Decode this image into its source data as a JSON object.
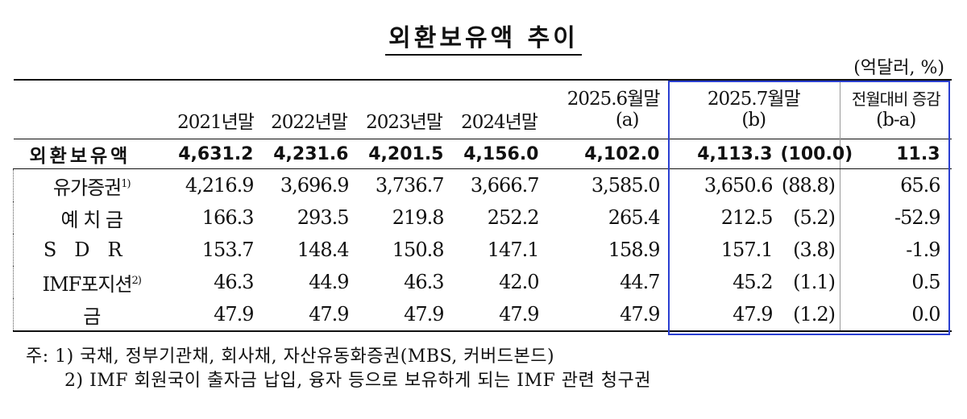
{
  "title": "외환보유액 추이",
  "unit": "(억달러, %)",
  "columns": {
    "c2021": "2021년말",
    "c2022": "2022년말",
    "c2023": "2023년말",
    "c2024": "2024년말",
    "c2025_6_top": "2025.6월말",
    "c2025_6_bot": "(a)",
    "c2025_7_top": "2025.7월말",
    "c2025_7_bot": "(b)",
    "change_top": "전월대비 증감",
    "change_bot": "(b-a)"
  },
  "rows": [
    {
      "label": "외환보유액",
      "sup": "",
      "v2021": "4,631.2",
      "v2022": "4,231.6",
      "v2023": "4,201.5",
      "v2024": "4,156.0",
      "v2025_6": "4,102.0",
      "v2025_7": "4,113.3",
      "share": "(100.0)",
      "change": "11.3"
    },
    {
      "label": "유가증권",
      "sup": "1)",
      "v2021": "4,216.9",
      "v2022": "3,696.9",
      "v2023": "3,736.7",
      "v2024": "3,666.7",
      "v2025_6": "3,585.0",
      "v2025_7": "3,650.6",
      "share": "(88.8)",
      "change": "65.6"
    },
    {
      "label": "예 치 금",
      "sup": "",
      "v2021": "166.3",
      "v2022": "293.5",
      "v2023": "219.8",
      "v2024": "252.2",
      "v2025_6": "265.4",
      "v2025_7": "212.5",
      "share": "(5.2)",
      "change": "-52.9"
    },
    {
      "label": "SDR",
      "sup": "",
      "v2021": "153.7",
      "v2022": "148.4",
      "v2023": "150.8",
      "v2024": "147.1",
      "v2025_6": "158.9",
      "v2025_7": "157.1",
      "share": "(3.8)",
      "change": "-1.9"
    },
    {
      "label": "IMF포지션",
      "sup": "2)",
      "v2021": "46.3",
      "v2022": "44.9",
      "v2023": "46.3",
      "v2024": "42.0",
      "v2025_6": "44.7",
      "v2025_7": "45.2",
      "share": "(1.1)",
      "change": "0.5"
    },
    {
      "label": "금",
      "sup": "",
      "v2021": "47.9",
      "v2022": "47.9",
      "v2023": "47.9",
      "v2024": "47.9",
      "v2025_6": "47.9",
      "v2025_7": "47.9",
      "share": "(1.2)",
      "change": "0.0"
    }
  ],
  "notes": {
    "n1": "주: 1) 국채, 정부기관채, 회사채, 자산유동화증권(MBS, 커버드본드)",
    "n2": "2) IMF 회원국이 출자금 납입, 융자 등으로 보유하게 되는 IMF 관련 청구권"
  }
}
